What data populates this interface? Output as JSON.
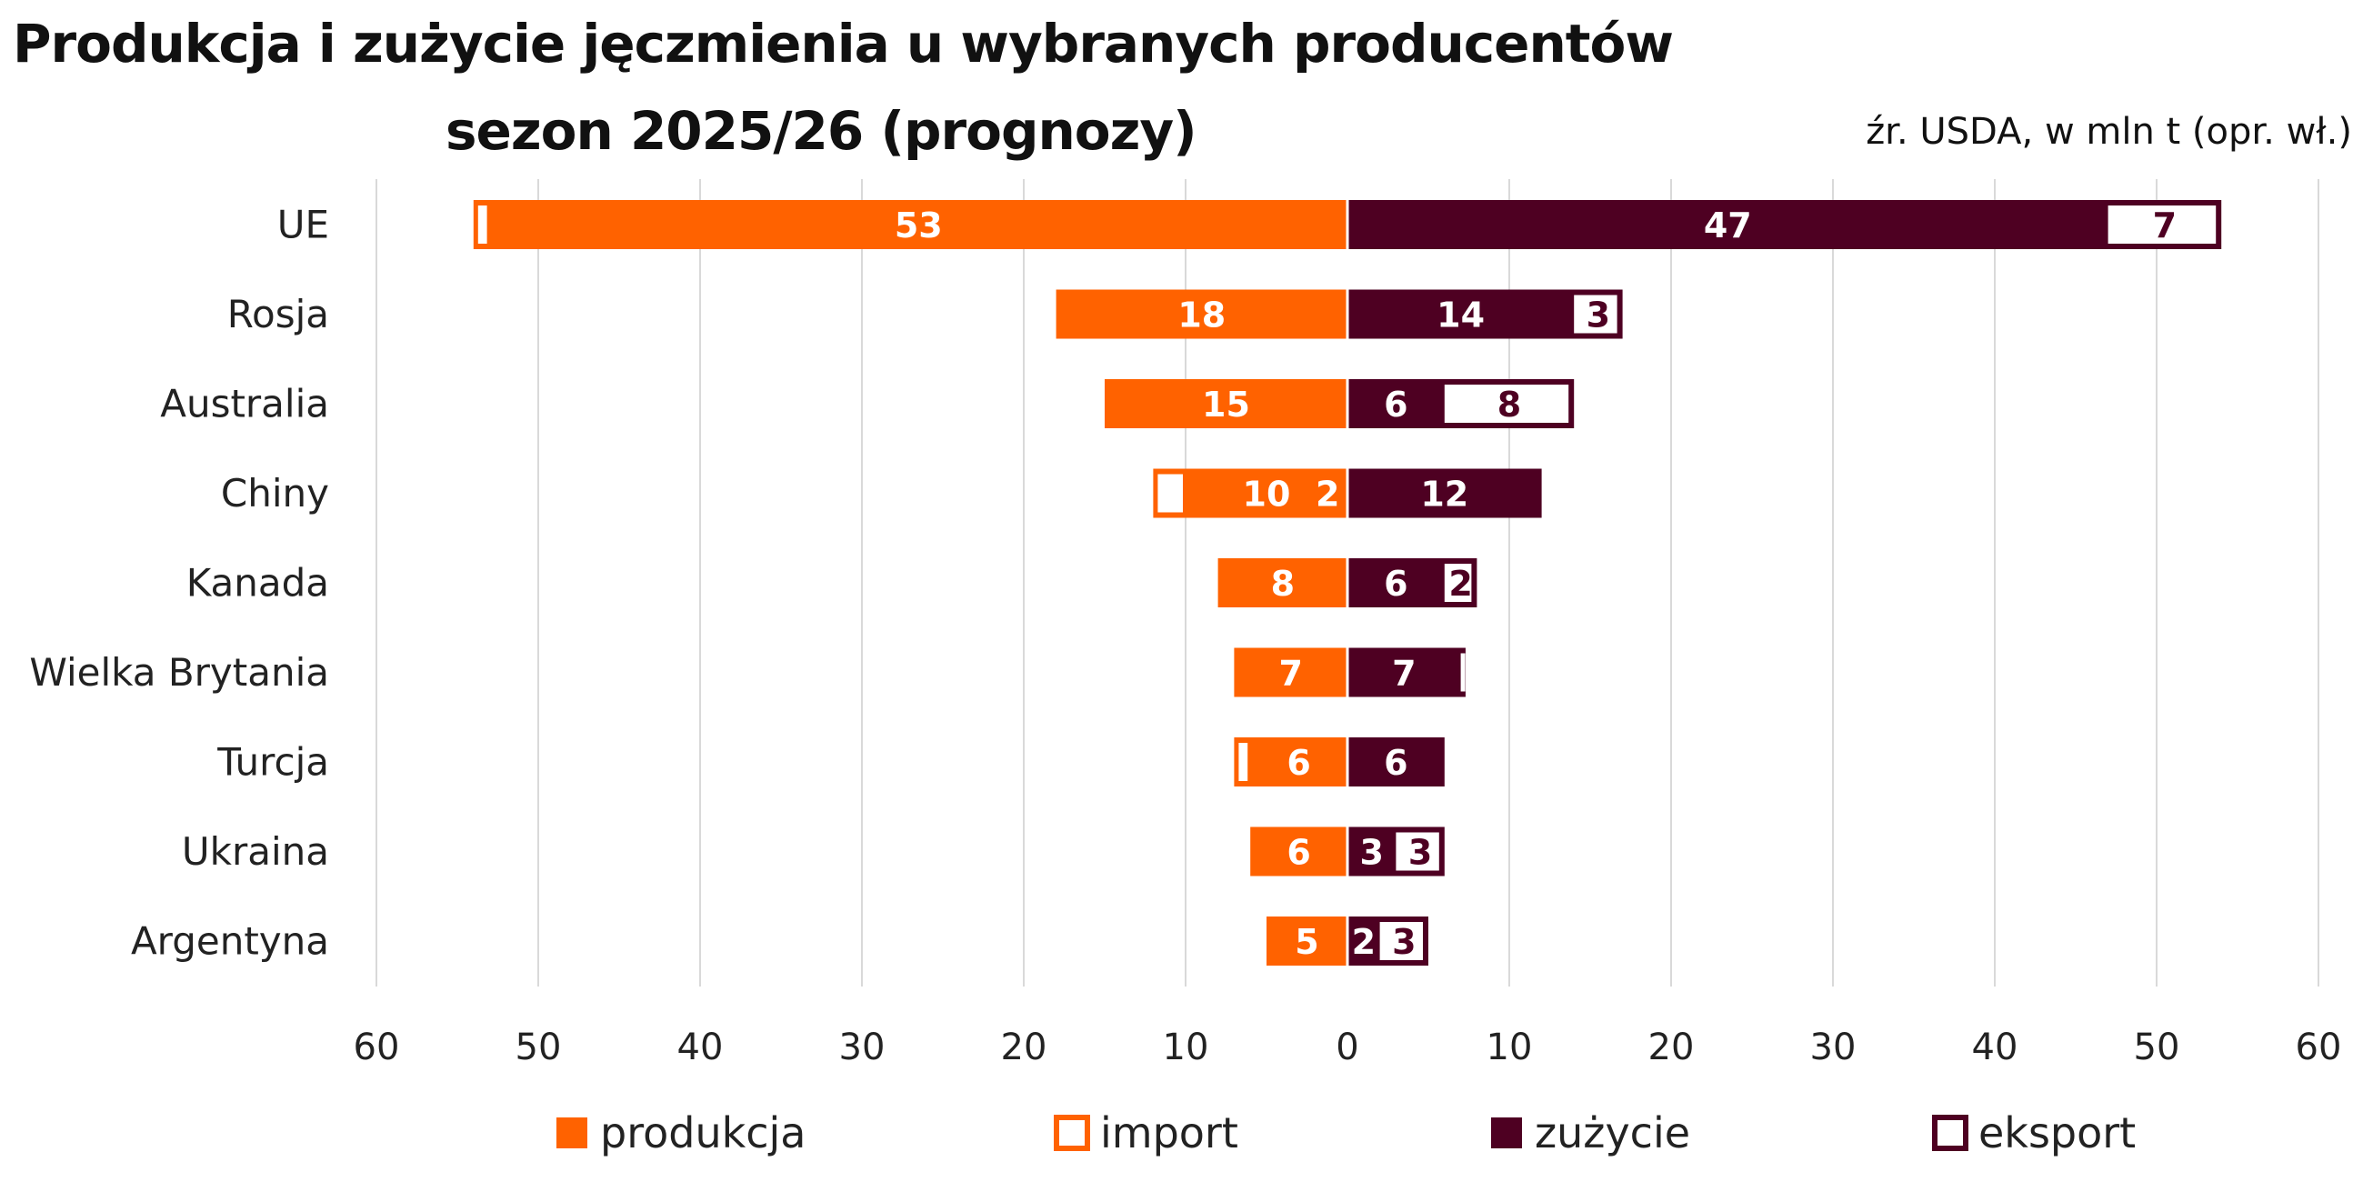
{
  "header": {
    "title_line1": "Produkcja i zużycie jęczmienia u wybranych producentów",
    "title_line2": "sezon 2025/26 (prognozy)",
    "source_note": "źr. USDA, w mln t (opr. wł.)"
  },
  "colors": {
    "produkcja": "#FF6200",
    "zuzycie": "#4E0022",
    "grid": "#d9d9d9",
    "axis_text": "#222222",
    "label_on_fill": "#ffffff"
  },
  "chart_data": {
    "type": "bar",
    "orientation": "horizontal-diverging",
    "categories": [
      "UE",
      "Rosja",
      "Australia",
      "Chiny",
      "Kanada",
      "Wielka Brytania",
      "Turcja",
      "Ukraina",
      "Argentyna"
    ],
    "left_side_series": [
      {
        "name": "produkcja",
        "values": [
          53,
          18,
          15,
          10,
          8,
          7,
          6,
          6,
          5
        ],
        "labels": [
          "53",
          "18",
          "15",
          "10",
          "8",
          "7",
          "6",
          "6",
          "5"
        ]
      },
      {
        "name": "import",
        "values": [
          1,
          0,
          0,
          2,
          0,
          0,
          1,
          0,
          0
        ],
        "labels": [
          "",
          "",
          "",
          "2",
          "",
          "",
          "",
          "",
          ""
        ]
      }
    ],
    "right_side_series": [
      {
        "name": "zużycie",
        "values": [
          47,
          14,
          6,
          12,
          6,
          7,
          6,
          3,
          2
        ],
        "labels": [
          "47",
          "14",
          "6",
          "12",
          "6",
          "7",
          "6",
          "3",
          "2"
        ]
      },
      {
        "name": "eksport",
        "values": [
          7,
          3,
          8,
          0,
          2,
          0.3,
          0,
          3,
          3
        ],
        "labels": [
          "7",
          "3",
          "8",
          "",
          "2",
          "",
          "",
          "3",
          "3"
        ]
      }
    ],
    "x_ticks_left": [
      "60",
      "50",
      "40",
      "30",
      "20",
      "10"
    ],
    "x_ticks_right": [
      "0",
      "10",
      "20",
      "30",
      "40",
      "50",
      "60"
    ],
    "xlim": [
      -60,
      60
    ],
    "grid": true,
    "legend_position": "bottom",
    "legend": [
      "produkcja",
      "import",
      "zużycie",
      "eksport"
    ]
  }
}
